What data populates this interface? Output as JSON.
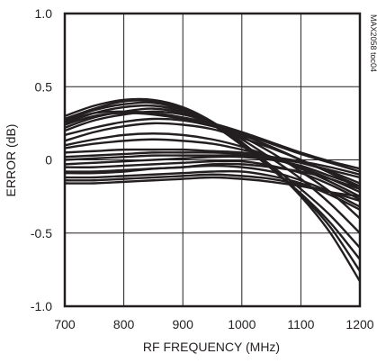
{
  "chart_data": {
    "type": "line",
    "title": "",
    "xlabel": "RF FREQUENCY (MHz)",
    "ylabel": "ERROR (dB)",
    "figure_tag": "MAX2058 toc04",
    "xlim": [
      700,
      1200
    ],
    "ylim": [
      -1.0,
      1.0
    ],
    "xticks": [
      700,
      800,
      900,
      1000,
      1100,
      1200
    ],
    "xtick_labels": [
      "700",
      "800",
      "900",
      "1000",
      "1100",
      "1200"
    ],
    "yticks": [
      1.0,
      0.5,
      0,
      -0.5,
      -1.0
    ],
    "ytick_labels": [
      "1.0",
      "0.5",
      "0",
      "-0.5",
      "-1.0"
    ],
    "grid": true,
    "legend": "none",
    "line_color": "#231f20",
    "x": [
      700,
      750,
      800,
      850,
      900,
      950,
      1000,
      1050,
      1100,
      1150,
      1200
    ],
    "series": [
      {
        "values": [
          0.3,
          0.37,
          0.41,
          0.41,
          0.36,
          0.26,
          0.12,
          -0.05,
          -0.25,
          -0.5,
          -0.83
        ]
      },
      {
        "values": [
          0.28,
          0.35,
          0.4,
          0.4,
          0.35,
          0.25,
          0.11,
          -0.06,
          -0.24,
          -0.46,
          -0.76
        ]
      },
      {
        "values": [
          0.27,
          0.34,
          0.38,
          0.39,
          0.34,
          0.24,
          0.1,
          -0.06,
          -0.23,
          -0.43,
          -0.68
        ]
      },
      {
        "values": [
          0.25,
          0.32,
          0.36,
          0.37,
          0.33,
          0.24,
          0.11,
          -0.04,
          -0.2,
          -0.38,
          -0.6
        ]
      },
      {
        "values": [
          0.22,
          0.29,
          0.33,
          0.35,
          0.32,
          0.25,
          0.14,
          0.01,
          -0.13,
          -0.3,
          -0.5
        ]
      },
      {
        "values": [
          0.2,
          0.27,
          0.31,
          0.33,
          0.31,
          0.25,
          0.16,
          0.05,
          -0.08,
          -0.22,
          -0.4
        ]
      },
      {
        "values": [
          0.26,
          0.32,
          0.33,
          0.32,
          0.29,
          0.25,
          0.19,
          0.12,
          0.05,
          -0.01,
          -0.06
        ]
      },
      {
        "values": [
          0.24,
          0.3,
          0.32,
          0.31,
          0.28,
          0.24,
          0.18,
          0.11,
          0.04,
          -0.02,
          -0.08
        ]
      },
      {
        "values": [
          0.17,
          0.22,
          0.26,
          0.28,
          0.27,
          0.23,
          0.17,
          0.09,
          0.0,
          -0.09,
          -0.18
        ]
      },
      {
        "values": [
          0.13,
          0.19,
          0.23,
          0.25,
          0.24,
          0.21,
          0.15,
          0.08,
          0.0,
          -0.09,
          -0.2
        ]
      },
      {
        "values": [
          0.1,
          0.14,
          0.17,
          0.18,
          0.17,
          0.14,
          0.09,
          0.02,
          -0.06,
          -0.15,
          -0.25
        ]
      },
      {
        "values": [
          0.08,
          0.11,
          0.13,
          0.14,
          0.13,
          0.11,
          0.07,
          0.02,
          -0.05,
          -0.13,
          -0.22
        ]
      },
      {
        "values": [
          0.05,
          0.06,
          0.07,
          0.07,
          0.07,
          0.06,
          0.05,
          0.02,
          -0.02,
          -0.08,
          -0.16
        ]
      },
      {
        "values": [
          0.02,
          0.03,
          0.04,
          0.05,
          0.05,
          0.05,
          0.04,
          0.02,
          -0.01,
          -0.05,
          -0.1
        ]
      },
      {
        "values": [
          0.0,
          0.01,
          0.02,
          0.03,
          0.03,
          0.03,
          0.03,
          0.01,
          -0.02,
          -0.07,
          -0.12
        ]
      },
      {
        "values": [
          -0.03,
          -0.02,
          -0.01,
          0.0,
          0.01,
          0.02,
          0.02,
          0.0,
          -0.04,
          -0.11,
          -0.18
        ]
      },
      {
        "values": [
          -0.05,
          -0.05,
          -0.04,
          -0.03,
          -0.02,
          -0.01,
          -0.01,
          -0.04,
          -0.09,
          -0.17,
          -0.27
        ]
      },
      {
        "values": [
          -0.08,
          -0.08,
          -0.07,
          -0.06,
          -0.05,
          -0.04,
          -0.05,
          -0.08,
          -0.14,
          -0.22,
          -0.32
        ]
      },
      {
        "values": [
          -0.09,
          -0.09,
          -0.08,
          -0.06,
          -0.05,
          -0.03,
          -0.03,
          -0.05,
          -0.08,
          -0.13,
          -0.2
        ]
      },
      {
        "values": [
          -0.12,
          -0.12,
          -0.11,
          -0.1,
          -0.09,
          -0.08,
          -0.08,
          -0.11,
          -0.16,
          -0.24,
          -0.34
        ]
      },
      {
        "values": [
          -0.14,
          -0.14,
          -0.13,
          -0.12,
          -0.11,
          -0.1,
          -0.11,
          -0.13,
          -0.17,
          -0.22,
          -0.28
        ]
      },
      {
        "values": [
          -0.16,
          -0.16,
          -0.15,
          -0.14,
          -0.13,
          -0.12,
          -0.13,
          -0.15,
          -0.18,
          -0.22,
          -0.25
        ]
      }
    ]
  }
}
